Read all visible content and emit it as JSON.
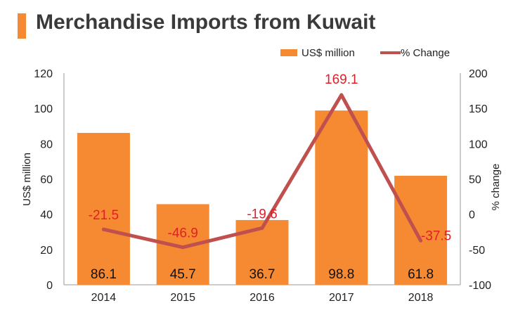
{
  "title": "Merchandise Imports from Kuwait",
  "colors": {
    "bar": "#f58a32",
    "line": "#c0504d",
    "accent": "#f58a32",
    "neg_label": "#e41e26"
  },
  "chart_data": {
    "type": "bar",
    "categories": [
      "2014",
      "2015",
      "2016",
      "2017",
      "2018"
    ],
    "series": [
      {
        "name": "US$ million",
        "type": "bar",
        "axis": "left",
        "values": [
          86.1,
          45.7,
          36.7,
          98.8,
          61.8
        ],
        "labels": [
          "86.1",
          "45.7",
          "36.7",
          "98.8",
          "61.8"
        ]
      },
      {
        "name": "% Change",
        "type": "line",
        "axis": "right",
        "values": [
          -21.5,
          -46.9,
          -19.6,
          169.1,
          -37.5
        ],
        "labels": [
          "-21.5",
          "-46.9",
          "-19.6",
          "169.1",
          "-37.5"
        ]
      }
    ],
    "ylabel": "US$ million",
    "y2label": "% change",
    "ylim": [
      0,
      120
    ],
    "y2lim": [
      -100,
      200
    ],
    "yticks": [
      "0",
      "20",
      "40",
      "60",
      "80",
      "100",
      "120"
    ],
    "y2ticks": [
      "-100",
      "-50",
      "0",
      "50",
      "100",
      "150",
      "200"
    ],
    "legend_position": "top-right",
    "grid": false
  }
}
